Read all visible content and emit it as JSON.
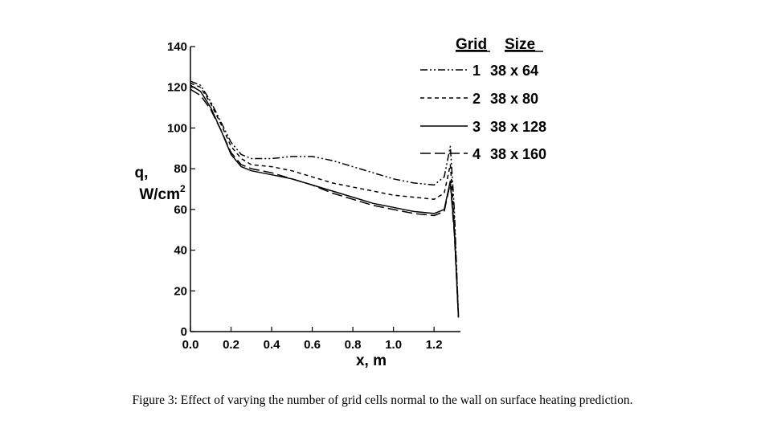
{
  "chart_data": {
    "type": "line",
    "xlabel": "x, m",
    "ylabel_line1": "q,",
    "ylabel_line2": "W/cm",
    "ylabel_sup": "2",
    "xlim": [
      0.0,
      1.33
    ],
    "ylim": [
      0,
      140
    ],
    "xticks": [
      "0.0",
      "0.2",
      "0.4",
      "0.6",
      "0.8",
      "1.0",
      "1.2"
    ],
    "yticks": [
      "0",
      "20",
      "40",
      "60",
      "80",
      "100",
      "120",
      "140"
    ],
    "legend_headers": [
      "Grid",
      "Size"
    ],
    "legend_position": "top-right",
    "series": [
      {
        "name": "1 38 x 64",
        "grid": "1",
        "size": "38 x 64",
        "style": "dashdotdot",
        "x": [
          0.0,
          0.05,
          0.1,
          0.15,
          0.2,
          0.25,
          0.3,
          0.4,
          0.5,
          0.6,
          0.7,
          0.8,
          0.9,
          1.0,
          1.1,
          1.2,
          1.25,
          1.28,
          1.3,
          1.32
        ],
        "y": [
          123,
          121,
          113,
          103,
          93,
          87,
          85,
          85,
          86,
          86,
          84,
          81,
          78,
          75,
          73,
          72,
          76,
          91,
          60,
          8
        ]
      },
      {
        "name": "2 38 x 80",
        "grid": "2",
        "size": "38 x 80",
        "style": "dashed",
        "x": [
          0.0,
          0.05,
          0.1,
          0.15,
          0.2,
          0.25,
          0.3,
          0.4,
          0.5,
          0.6,
          0.7,
          0.8,
          0.9,
          1.0,
          1.1,
          1.2,
          1.25,
          1.28,
          1.3,
          1.32
        ],
        "y": [
          122,
          120,
          112,
          102,
          91,
          85,
          82,
          81,
          79,
          76,
          73,
          71,
          69,
          67,
          66,
          65,
          68,
          82,
          55,
          8
        ]
      },
      {
        "name": "3 38 x 128",
        "grid": "3",
        "size": "38 x 128",
        "style": "solid",
        "x": [
          0.0,
          0.05,
          0.1,
          0.15,
          0.2,
          0.25,
          0.3,
          0.4,
          0.5,
          0.6,
          0.7,
          0.8,
          0.9,
          1.0,
          1.1,
          1.2,
          1.25,
          1.28,
          1.3,
          1.32
        ],
        "y": [
          121,
          118,
          110,
          99,
          87,
          81,
          79,
          77,
          75,
          72,
          69,
          66,
          63,
          61,
          59,
          58,
          60,
          74,
          50,
          7
        ]
      },
      {
        "name": "4 38 x 160",
        "grid": "4",
        "size": "38 x 160",
        "style": "longdash",
        "x": [
          0.0,
          0.05,
          0.1,
          0.15,
          0.2,
          0.25,
          0.3,
          0.4,
          0.5,
          0.6,
          0.7,
          0.8,
          0.9,
          1.0,
          1.1,
          1.2,
          1.25,
          1.28,
          1.3,
          1.32
        ],
        "y": [
          119,
          116,
          109,
          99,
          88,
          82,
          80,
          78,
          75,
          72,
          68,
          65,
          62,
          60,
          58,
          57,
          59,
          73,
          48,
          7
        ]
      }
    ]
  },
  "caption": "Figure 3: Effect of varying the number of grid cells normal to the wall on surface heating prediction."
}
